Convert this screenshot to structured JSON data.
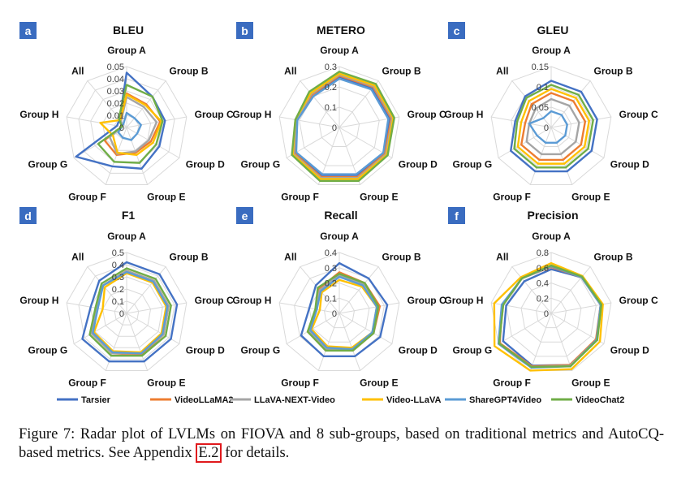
{
  "groups": [
    "Group A",
    "Group B",
    "Group C",
    "Group D",
    "Group E",
    "Group F",
    "Group G",
    "Group H",
    "All"
  ],
  "colors": {
    "Tarsier": "#4472c4",
    "VideoLLaMA2": "#ed7d31",
    "LLaVA-NEXT-Video": "#a5a5a5",
    "Video-LLaVA": "#ffc000",
    "ShareGPT4Video": "#5b9bd5",
    "VideoChat2": "#70ad47"
  },
  "legend": [
    "Tarsier",
    "VideoLLaMA2",
    "LLaVA-NEXT-Video",
    "Video-LLaVA",
    "ShareGPT4Video",
    "VideoChat2"
  ],
  "chart_data": [
    {
      "type": "radar",
      "letter": "a",
      "title": "BLEU",
      "max": 0.05,
      "ticks": [
        "0",
        "0.01",
        "0.02",
        "0.03",
        "0.04",
        "0.05"
      ],
      "series": [
        {
          "name": "Tarsier",
          "values": [
            0.045,
            0.033,
            0.032,
            0.031,
            0.036,
            0.034,
            0.048,
            0.008,
            0.009
          ]
        },
        {
          "name": "VideoLLaMA2",
          "values": [
            0.028,
            0.025,
            0.028,
            0.023,
            0.022,
            0.024,
            0.021,
            0.004,
            0.008
          ]
        },
        {
          "name": "LLaVA-NEXT-Video",
          "values": [
            0.025,
            0.022,
            0.025,
            0.021,
            0.021,
            0.023,
            0.016,
            0.004,
            0.007
          ]
        },
        {
          "name": "Video-LLaVA",
          "values": [
            0.027,
            0.024,
            0.029,
            0.025,
            0.024,
            0.022,
            0.013,
            0.022,
            0.008
          ]
        },
        {
          "name": "ShareGPT4Video",
          "values": [
            0.012,
            0.01,
            0.012,
            0.01,
            0.011,
            0.009,
            0.008,
            0.004,
            0.004
          ]
        },
        {
          "name": "VideoChat2",
          "values": [
            0.035,
            0.033,
            0.03,
            0.028,
            0.031,
            0.03,
            0.027,
            0.004,
            0.01
          ]
        }
      ]
    },
    {
      "type": "radar",
      "letter": "b",
      "title": "METERO",
      "max": 0.3,
      "ticks": [
        "0",
        "0.1",
        "0.2",
        "0.3"
      ],
      "series": [
        {
          "name": "Tarsier",
          "values": [
            0.25,
            0.25,
            0.25,
            0.255,
            0.25,
            0.25,
            0.25,
            0.21,
            0.2
          ]
        },
        {
          "name": "VideoLLaMA2",
          "values": [
            0.255,
            0.26,
            0.26,
            0.26,
            0.26,
            0.26,
            0.255,
            0.215,
            0.21
          ]
        },
        {
          "name": "LLaVA-NEXT-Video",
          "values": [
            0.26,
            0.265,
            0.265,
            0.265,
            0.265,
            0.265,
            0.26,
            0.215,
            0.215
          ]
        },
        {
          "name": "Video-LLaVA",
          "values": [
            0.265,
            0.27,
            0.27,
            0.27,
            0.27,
            0.27,
            0.265,
            0.22,
            0.22
          ]
        },
        {
          "name": "ShareGPT4Video",
          "values": [
            0.24,
            0.245,
            0.245,
            0.25,
            0.245,
            0.245,
            0.245,
            0.21,
            0.2
          ]
        },
        {
          "name": "VideoChat2",
          "values": [
            0.275,
            0.28,
            0.275,
            0.275,
            0.28,
            0.28,
            0.27,
            0.22,
            0.23
          ]
        }
      ]
    },
    {
      "type": "radar",
      "letter": "c",
      "title": "GLEU",
      "max": 0.15,
      "ticks": [
        "0",
        "0.05",
        "0.1",
        "0.15"
      ],
      "series": [
        {
          "name": "Tarsier",
          "values": [
            0.115,
            0.115,
            0.115,
            0.115,
            0.115,
            0.115,
            0.115,
            0.09,
            0.1
          ]
        },
        {
          "name": "VideoLLaMA2",
          "values": [
            0.085,
            0.085,
            0.085,
            0.085,
            0.085,
            0.085,
            0.085,
            0.065,
            0.075
          ]
        },
        {
          "name": "LLaVA-NEXT-Video",
          "values": [
            0.07,
            0.07,
            0.07,
            0.07,
            0.07,
            0.07,
            0.07,
            0.055,
            0.06
          ]
        },
        {
          "name": "Video-LLaVA",
          "values": [
            0.095,
            0.095,
            0.095,
            0.095,
            0.095,
            0.095,
            0.095,
            0.075,
            0.085
          ]
        },
        {
          "name": "ShareGPT4Video",
          "values": [
            0.04,
            0.04,
            0.04,
            0.04,
            0.04,
            0.04,
            0.04,
            0.055,
            0.03
          ]
        },
        {
          "name": "VideoChat2",
          "values": [
            0.105,
            0.105,
            0.105,
            0.105,
            0.105,
            0.105,
            0.105,
            0.085,
            0.095
          ]
        }
      ]
    },
    {
      "type": "radar",
      "letter": "d",
      "title": "F1",
      "max": 0.5,
      "ticks": [
        "0",
        "0.1",
        "0.2",
        "0.3",
        "0.4",
        "0.5"
      ],
      "series": [
        {
          "name": "Tarsier",
          "values": [
            0.42,
            0.42,
            0.42,
            0.42,
            0.42,
            0.42,
            0.42,
            0.3,
            0.35
          ]
        },
        {
          "name": "VideoLLaMA2",
          "values": [
            0.35,
            0.35,
            0.35,
            0.35,
            0.36,
            0.35,
            0.33,
            0.25,
            0.3
          ]
        },
        {
          "name": "LLaVA-NEXT-Video",
          "values": [
            0.35,
            0.35,
            0.35,
            0.35,
            0.35,
            0.35,
            0.33,
            0.25,
            0.3
          ]
        },
        {
          "name": "Video-LLaVA",
          "values": [
            0.33,
            0.33,
            0.33,
            0.33,
            0.34,
            0.33,
            0.31,
            0.2,
            0.28
          ]
        },
        {
          "name": "ShareGPT4Video",
          "values": [
            0.34,
            0.34,
            0.34,
            0.34,
            0.35,
            0.34,
            0.32,
            0.24,
            0.3
          ]
        },
        {
          "name": "VideoChat2",
          "values": [
            0.37,
            0.37,
            0.37,
            0.37,
            0.37,
            0.37,
            0.35,
            0.26,
            0.32
          ]
        }
      ]
    },
    {
      "type": "radar",
      "letter": "e",
      "title": "Recall",
      "max": 0.4,
      "ticks": [
        "0",
        "0.1",
        "0.2",
        "0.3",
        "0.4"
      ],
      "series": [
        {
          "name": "Tarsier",
          "values": [
            0.33,
            0.3,
            0.32,
            0.31,
            0.3,
            0.3,
            0.29,
            0.2,
            0.24
          ]
        },
        {
          "name": "VideoLLaMA2",
          "values": [
            0.27,
            0.26,
            0.27,
            0.26,
            0.26,
            0.26,
            0.24,
            0.15,
            0.21
          ]
        },
        {
          "name": "LLaVA-NEXT-Video",
          "values": [
            0.25,
            0.25,
            0.26,
            0.26,
            0.25,
            0.25,
            0.23,
            0.15,
            0.2
          ]
        },
        {
          "name": "Video-LLaVA",
          "values": [
            0.22,
            0.23,
            0.25,
            0.25,
            0.24,
            0.23,
            0.21,
            0.13,
            0.18
          ]
        },
        {
          "name": "ShareGPT4Video",
          "values": [
            0.24,
            0.24,
            0.25,
            0.25,
            0.25,
            0.24,
            0.22,
            0.15,
            0.19
          ]
        },
        {
          "name": "VideoChat2",
          "values": [
            0.26,
            0.26,
            0.26,
            0.26,
            0.26,
            0.26,
            0.24,
            0.16,
            0.22
          ]
        }
      ]
    },
    {
      "type": "radar",
      "letter": "f",
      "title": "Precision",
      "max": 0.8,
      "ticks": [
        "0",
        "0.2",
        "0.4",
        "0.6",
        "0.8"
      ],
      "series": [
        {
          "name": "Tarsier",
          "values": [
            0.58,
            0.62,
            0.66,
            0.69,
            0.72,
            0.73,
            0.73,
            0.6,
            0.55
          ]
        },
        {
          "name": "VideoLLaMA2",
          "values": [
            0.61,
            0.62,
            0.66,
            0.68,
            0.72,
            0.74,
            0.78,
            0.65,
            0.6
          ]
        },
        {
          "name": "LLaVA-NEXT-Video",
          "values": [
            0.62,
            0.63,
            0.67,
            0.69,
            0.73,
            0.75,
            0.79,
            0.64,
            0.6
          ]
        },
        {
          "name": "Video-LLaVA",
          "values": [
            0.66,
            0.64,
            0.69,
            0.74,
            0.78,
            0.8,
            0.86,
            0.76,
            0.62
          ]
        },
        {
          "name": "ShareGPT4Video",
          "values": [
            0.62,
            0.62,
            0.66,
            0.69,
            0.74,
            0.76,
            0.8,
            0.66,
            0.6
          ]
        },
        {
          "name": "VideoChat2",
          "values": [
            0.63,
            0.63,
            0.67,
            0.7,
            0.74,
            0.75,
            0.79,
            0.64,
            0.6
          ]
        }
      ]
    }
  ],
  "caption": {
    "text": "Figure 7:  Radar plot of LVLMs on FIOVA and 8 sub-groups, based on traditional metrics and AutoCQ-based metrics. See Appendix ",
    "ref": "E.2",
    "tail": " for details."
  }
}
